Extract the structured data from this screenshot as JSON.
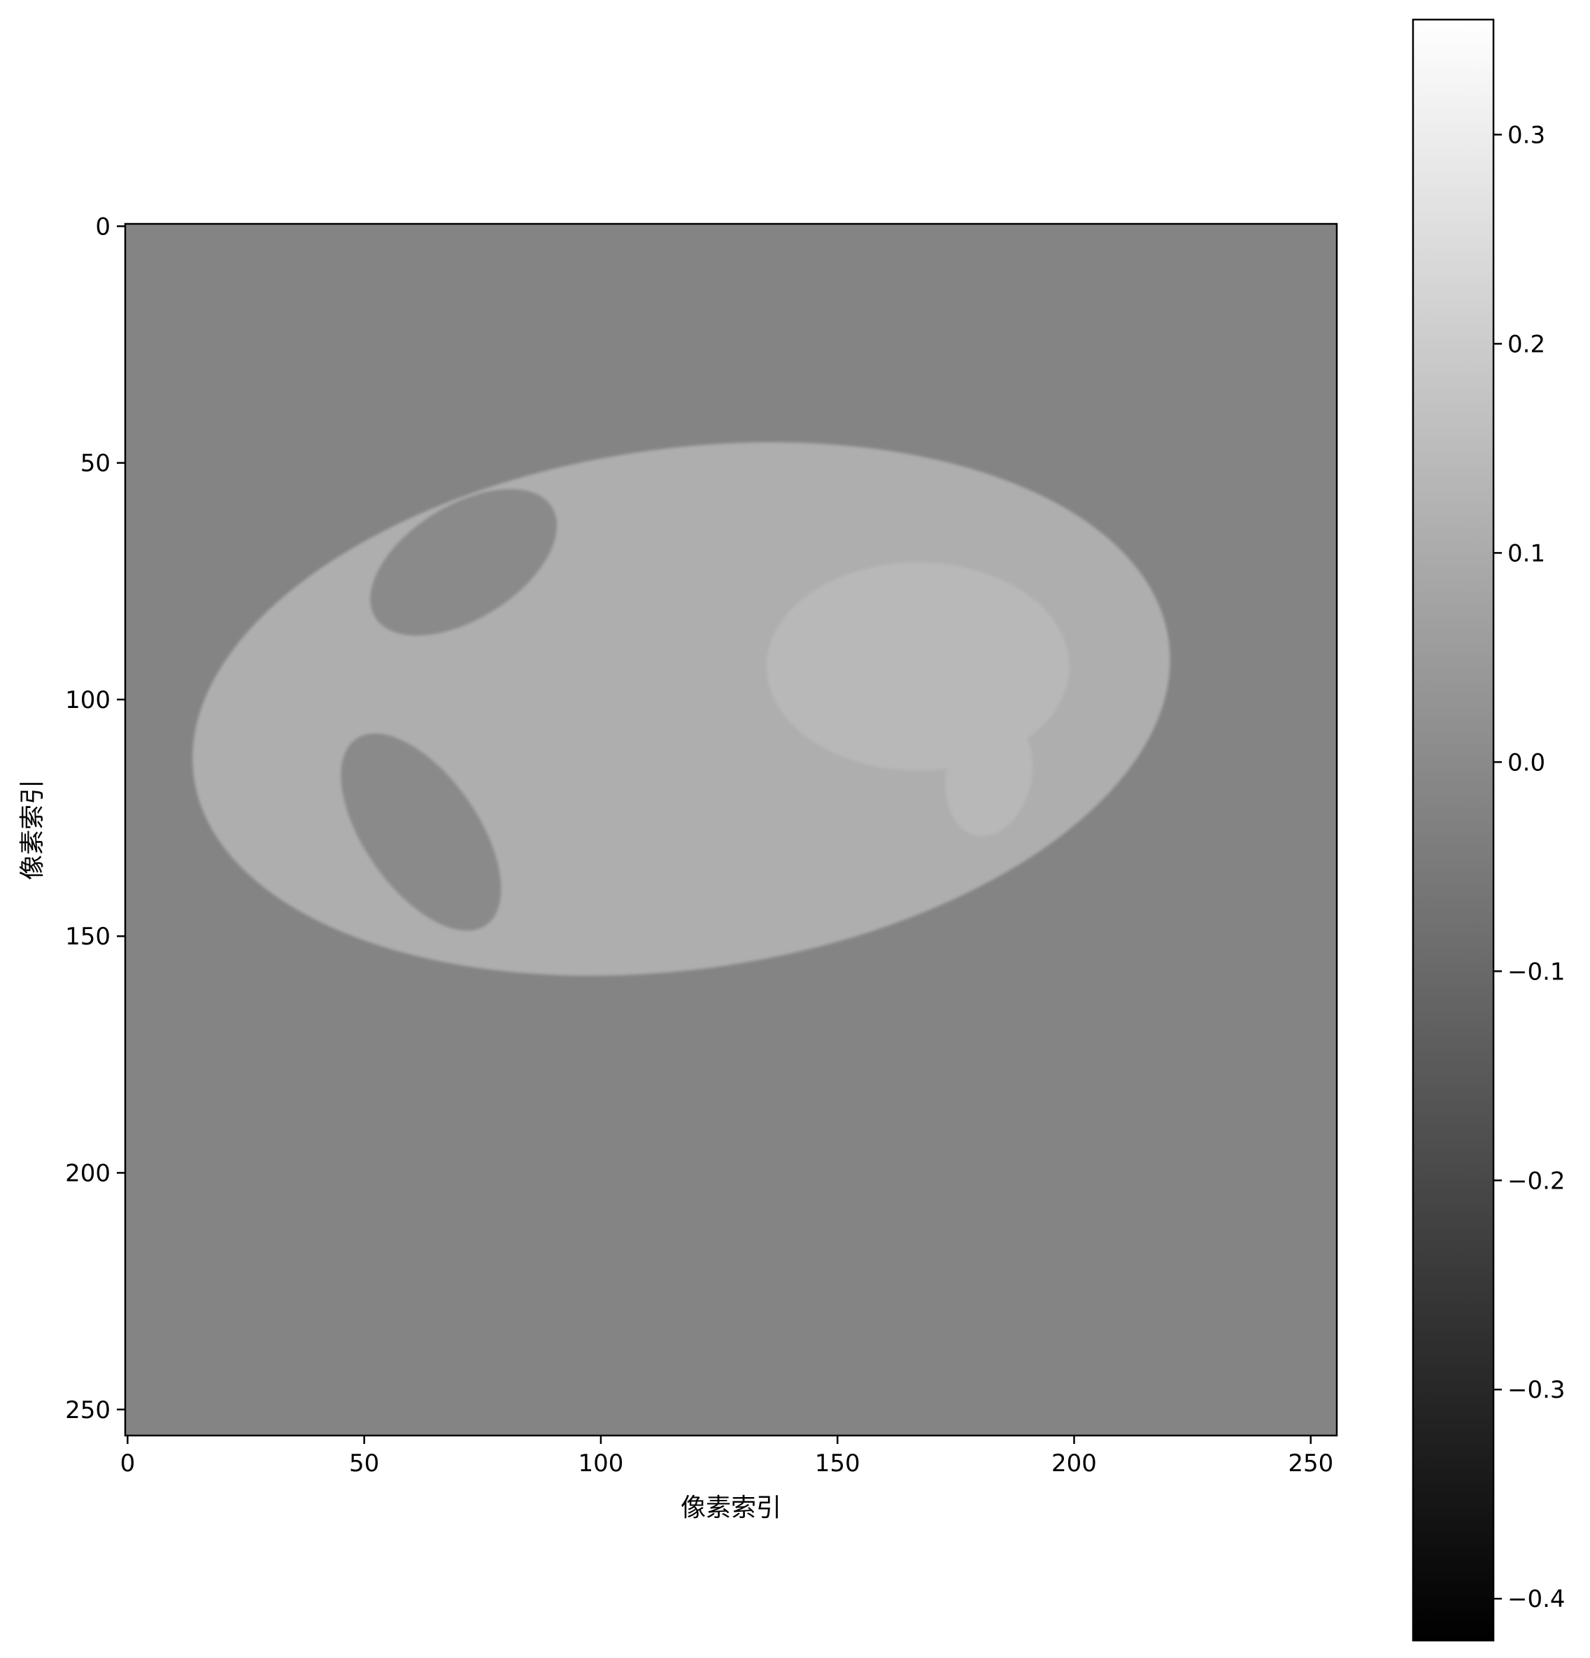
{
  "chart_data": {
    "type": "heatmap",
    "xlabel": "像素索引",
    "ylabel": "像素索引",
    "xlim": [
      -0.5,
      255.5
    ],
    "ylim": [
      255.5,
      -0.5
    ],
    "y_axis_inverted": true,
    "x_ticks": [
      0,
      50,
      100,
      150,
      200,
      250
    ],
    "y_ticks": [
      0,
      50,
      100,
      150,
      200,
      250
    ],
    "x_tick_labels": [
      "0",
      "50",
      "100",
      "150",
      "200",
      "250"
    ],
    "y_tick_labels": [
      "0",
      "50",
      "100",
      "150",
      "200",
      "250"
    ],
    "colormap": "gray",
    "grid": false,
    "background_value": -0.02,
    "colorbar": {
      "range": [
        -0.42,
        0.355
      ],
      "ticks": [
        -0.4,
        -0.3,
        -0.2,
        -0.1,
        0.0,
        0.1,
        0.2,
        0.3
      ],
      "tick_labels": [
        "−0.4",
        "−0.3",
        "−0.2",
        "−0.1",
        "0.0",
        "0.1",
        "0.2",
        "0.3"
      ],
      "placement": "right"
    },
    "regions": [
      {
        "name": "outer ellipse",
        "shape": "ellipse",
        "center": [
          117,
          102
        ],
        "radii": [
          104,
          55
        ],
        "rotation_deg": -8,
        "value": 0.11
      },
      {
        "name": "upper dark ellipse",
        "shape": "ellipse",
        "center": [
          71,
          71
        ],
        "radii": [
          22,
          12
        ],
        "rotation_deg": -32,
        "value": 0.0
      },
      {
        "name": "lower dark ellipse",
        "shape": "ellipse",
        "center": [
          62,
          128
        ],
        "radii": [
          24,
          12
        ],
        "rotation_deg": 55,
        "value": 0.0
      },
      {
        "name": "right bright ellipse",
        "shape": "ellipse",
        "center": [
          167,
          93
        ],
        "radii": [
          32,
          22
        ],
        "rotation_deg": 0,
        "value": 0.14
      },
      {
        "name": "small bright ellipse",
        "shape": "ellipse",
        "center": [
          182,
          116
        ],
        "radii": [
          9,
          13
        ],
        "rotation_deg": 12,
        "value": 0.14
      }
    ]
  }
}
